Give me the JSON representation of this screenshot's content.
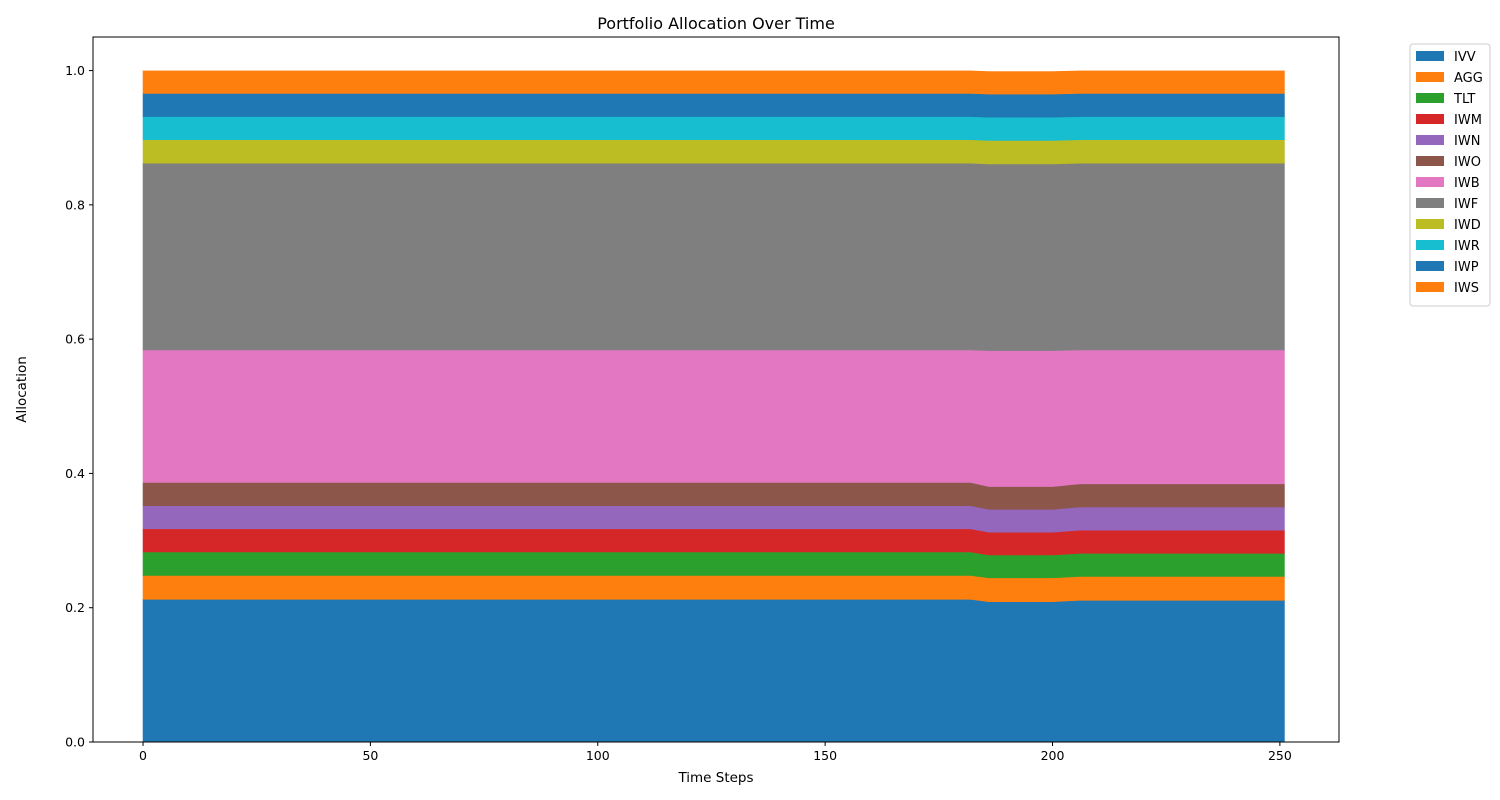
{
  "chart_data": {
    "type": "area",
    "stacked": true,
    "title": "Portfolio Allocation Over Time",
    "xlabel": "Time Steps",
    "ylabel": "Allocation",
    "xlim": [
      -11,
      263
    ],
    "ylim": [
      0.0,
      1.05
    ],
    "xticks": [
      0,
      50,
      100,
      150,
      200,
      250
    ],
    "yticks": [
      0.0,
      0.2,
      0.4,
      0.6,
      0.8,
      1.0
    ],
    "ytick_labels": [
      "0.0",
      "0.2",
      "0.4",
      "0.6",
      "0.8",
      "1.0"
    ],
    "grid": false,
    "legend_position": "outside-top-right",
    "x": [
      0,
      182,
      186,
      200,
      206,
      251
    ],
    "series": [
      {
        "name": "IVV",
        "color": "#1f77b4",
        "values": [
          0.2125,
          0.2125,
          0.209,
          0.209,
          0.211,
          0.211
        ]
      },
      {
        "name": "AGG",
        "color": "#ff7f0e",
        "values": [
          0.0355,
          0.0355,
          0.0355,
          0.0355,
          0.0355,
          0.0355
        ]
      },
      {
        "name": "TLT",
        "color": "#2ca02c",
        "values": [
          0.035,
          0.035,
          0.034,
          0.034,
          0.0345,
          0.0345
        ]
      },
      {
        "name": "IWM",
        "color": "#d62728",
        "values": [
          0.0345,
          0.0345,
          0.034,
          0.034,
          0.0345,
          0.0345
        ]
      },
      {
        "name": "IWN",
        "color": "#9467bd",
        "values": [
          0.0345,
          0.0345,
          0.034,
          0.034,
          0.0345,
          0.0345
        ]
      },
      {
        "name": "IWO",
        "color": "#8c564b",
        "values": [
          0.0345,
          0.0345,
          0.034,
          0.034,
          0.0345,
          0.0345
        ]
      },
      {
        "name": "IWB",
        "color": "#e377c2",
        "values": [
          0.1975,
          0.1975,
          0.2025,
          0.2025,
          0.1995,
          0.1995
        ]
      },
      {
        "name": "IWF",
        "color": "#7f7f7f",
        "values": [
          0.278,
          0.278,
          0.278,
          0.278,
          0.278,
          0.278
        ]
      },
      {
        "name": "IWD",
        "color": "#bcbd22",
        "values": [
          0.035,
          0.035,
          0.035,
          0.035,
          0.035,
          0.035
        ]
      },
      {
        "name": "IWR",
        "color": "#17becf",
        "values": [
          0.0345,
          0.0345,
          0.0345,
          0.0345,
          0.0345,
          0.0345
        ]
      },
      {
        "name": "IWP",
        "color": "#1f77b4",
        "values": [
          0.0345,
          0.0345,
          0.0345,
          0.0345,
          0.0345,
          0.0345
        ]
      },
      {
        "name": "IWS",
        "color": "#ff7f0e",
        "values": [
          0.0335,
          0.0335,
          0.0335,
          0.0335,
          0.0335,
          0.0335
        ]
      }
    ]
  }
}
